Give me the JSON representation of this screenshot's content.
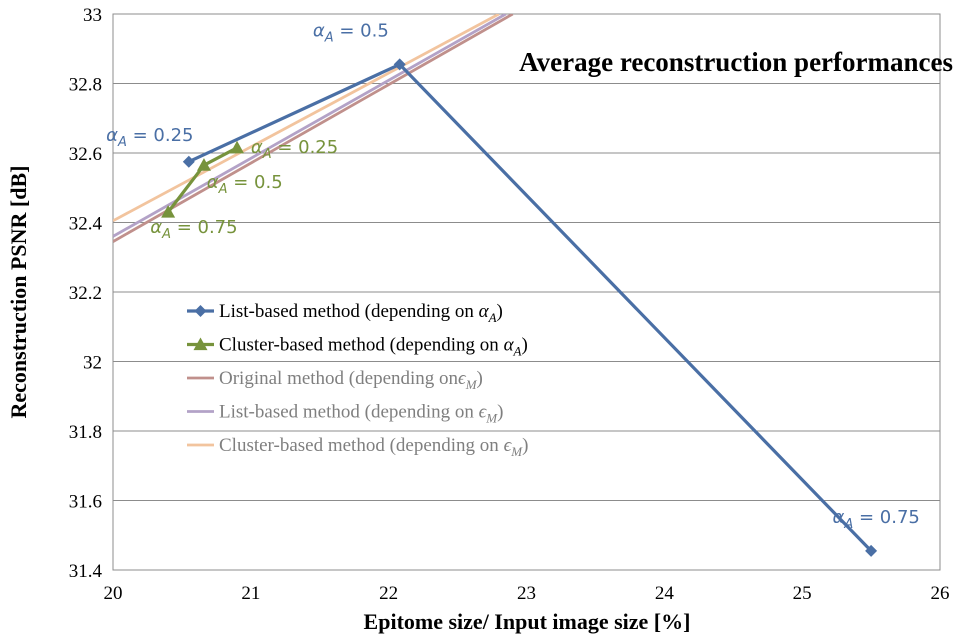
{
  "chart_data": {
    "type": "line",
    "title": "Average reconstruction performances",
    "xlabel": "Epitome size/ Input image size [%]",
    "ylabel": "Reconstruction PSNR [dB]",
    "xlim": [
      20,
      26
    ],
    "ylim": [
      31.4,
      33
    ],
    "xticks": [
      "20",
      "21",
      "22",
      "23",
      "24",
      "25",
      "26"
    ],
    "yticks": [
      "31.4",
      "31.6",
      "31.8",
      "32",
      "32.2",
      "32.4",
      "32.6",
      "32.8",
      "33"
    ],
    "grid": true,
    "legend_position": "center-left",
    "series": [
      {
        "name": "List-based method (depending on α_A)",
        "legend_prefix": "List-based method (depending on ",
        "legend_sym": "α",
        "legend_sub": "A",
        "legend_suffix": ")",
        "color": "#4A6FA5",
        "marker": "diamond",
        "x": [
          20.55,
          22.08,
          25.5
        ],
        "y": [
          32.575,
          32.855,
          31.455
        ],
        "point_labels": [
          "α_A = 0.25",
          "α_A = 0.5",
          "α_A = 0.75"
        ]
      },
      {
        "name": "Cluster-based method (depending on α_A)",
        "legend_prefix": "Cluster-based method (depending on ",
        "legend_sym": "α",
        "legend_sub": "A",
        "legend_suffix": ")",
        "color": "#77933C",
        "marker": "triangle",
        "x": [
          20.4,
          20.66,
          20.9
        ],
        "y": [
          32.43,
          32.565,
          32.615
        ],
        "point_labels": [
          "α_A = 0.75",
          "α_A = 0.5",
          "α_A = 0.25"
        ]
      },
      {
        "name": "Original method (depending on ϵ_M)",
        "legend_prefix": "Original method (depending on",
        "legend_sym": "ϵ",
        "legend_sub": "M",
        "legend_suffix": ")",
        "color": "#C0908C",
        "marker": "none",
        "x": [
          20.0,
          22.9
        ],
        "y": [
          32.345,
          33.0
        ]
      },
      {
        "name": "List-based method (depending on ϵ_M)",
        "legend_prefix": "List-based method (depending on ",
        "legend_sym": "ϵ",
        "legend_sub": "M",
        "legend_suffix": ")",
        "color": "#B3A2C7",
        "marker": "none",
        "x": [
          20.0,
          22.85
        ],
        "y": [
          32.36,
          33.0
        ]
      },
      {
        "name": "Cluster-based method (depending on ϵ_M)",
        "legend_prefix": "Cluster-based method (depending on ",
        "legend_sym": "ϵ",
        "legend_sub": "M",
        "legend_suffix": ")",
        "color": "#F2C49E",
        "marker": "none",
        "x": [
          20.0,
          22.8
        ],
        "y": [
          32.405,
          33.0
        ]
      }
    ],
    "annotations": [
      {
        "sym": "α",
        "sub": "A",
        "rest": " = 0.25",
        "x": 19.95,
        "y": 32.635,
        "color": "#4A6FA5"
      },
      {
        "sym": "α",
        "sub": "A",
        "rest": " = 0.5",
        "x": 21.45,
        "y": 32.935,
        "color": "#4A6FA5"
      },
      {
        "sym": "α",
        "sub": "A",
        "rest": " = 0.75",
        "x": 25.22,
        "y": 31.535,
        "color": "#4A6FA5"
      },
      {
        "sym": "α",
        "sub": "A",
        "rest": " = 0.25",
        "x": 21.0,
        "y": 32.6,
        "color": "#77933C"
      },
      {
        "sym": "α",
        "sub": "A",
        "rest": " = 0.5",
        "x": 20.68,
        "y": 32.5,
        "color": "#77933C"
      },
      {
        "sym": "α",
        "sub": "A",
        "rest": " = 0.75",
        "x": 20.27,
        "y": 32.37,
        "color": "#77933C"
      }
    ]
  }
}
